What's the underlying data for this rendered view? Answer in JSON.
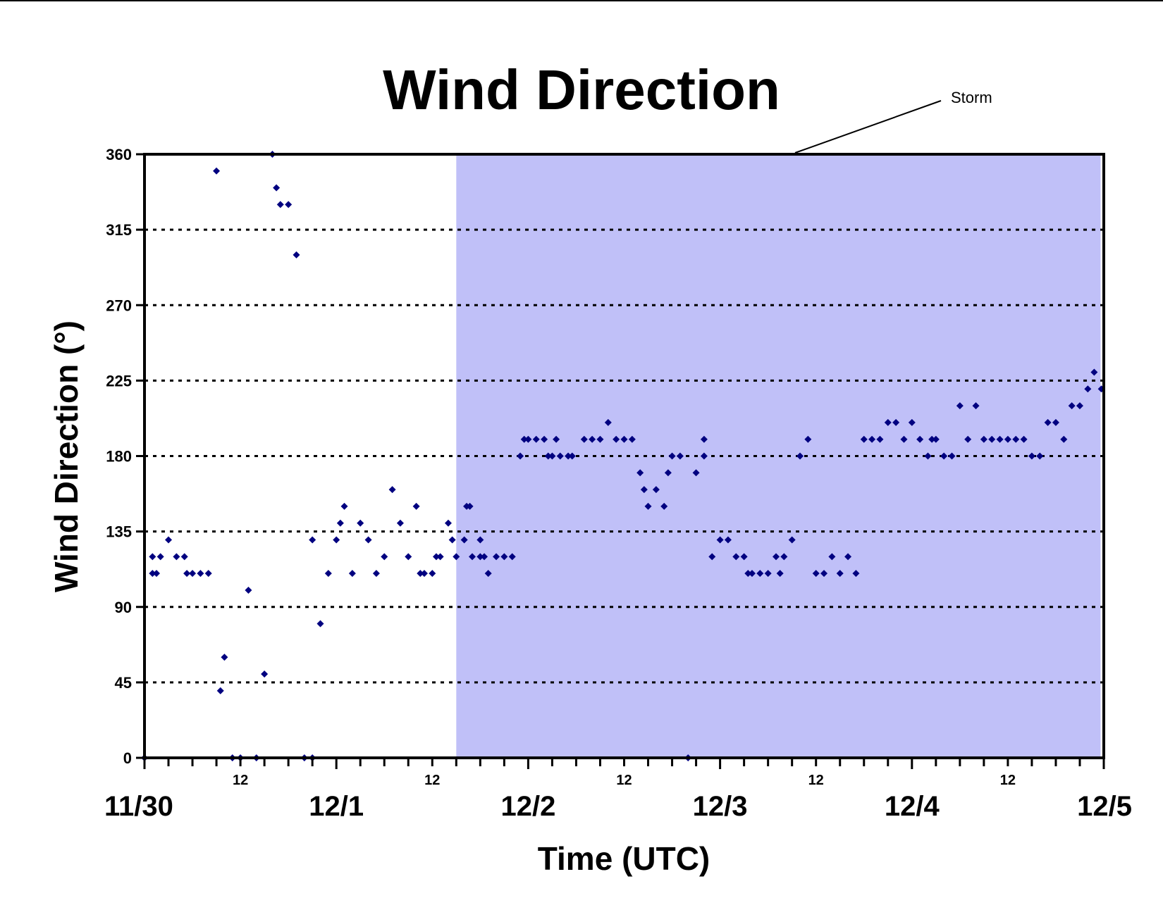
{
  "chart_data": {
    "type": "scatter",
    "title": "Wind Direction",
    "xlabel": "Time (UTC)",
    "ylabel": "Wind Direction (°)",
    "x_unit": "hours since 11/30 00 UTC",
    "xlim": [
      0,
      120
    ],
    "ylim": [
      0,
      360
    ],
    "y_ticks": [
      "0",
      "45",
      "90",
      "135",
      "180",
      "225",
      "270",
      "315",
      "360"
    ],
    "y_tick_values": [
      0,
      45,
      90,
      135,
      180,
      225,
      270,
      315,
      360
    ],
    "grid": "horizontal dotted",
    "day_labels": [
      {
        "x": 0,
        "label": "11/30"
      },
      {
        "x": 24,
        "label": "12/1"
      },
      {
        "x": 48,
        "label": "12/2"
      },
      {
        "x": 72,
        "label": "12/3"
      },
      {
        "x": 96,
        "label": "12/4"
      },
      {
        "x": 120,
        "label": "12/5"
      }
    ],
    "hour_labels": [
      {
        "x": 12,
        "label": "12"
      },
      {
        "x": 36,
        "label": "12"
      },
      {
        "x": 60,
        "label": "12"
      },
      {
        "x": 84,
        "label": "12"
      },
      {
        "x": 108,
        "label": "12"
      }
    ],
    "shaded_region": {
      "x_start": 39,
      "x_end": 119.6,
      "label": "Storm",
      "color": "#c0c0f8"
    },
    "marker_color": "#000080",
    "points": [
      [
        0,
        0
      ],
      [
        1,
        120
      ],
      [
        1,
        110
      ],
      [
        1.5,
        110
      ],
      [
        2,
        120
      ],
      [
        3,
        130
      ],
      [
        4,
        120
      ],
      [
        5,
        120
      ],
      [
        5.3,
        110
      ],
      [
        6,
        110
      ],
      [
        7,
        110
      ],
      [
        8,
        110
      ],
      [
        9,
        350
      ],
      [
        9.5,
        40
      ],
      [
        10,
        60
      ],
      [
        11,
        0
      ],
      [
        12,
        0
      ],
      [
        13,
        100
      ],
      [
        14,
        0
      ],
      [
        15,
        50
      ],
      [
        16,
        360
      ],
      [
        16.5,
        340
      ],
      [
        17,
        330
      ],
      [
        18,
        330
      ],
      [
        19,
        300
      ],
      [
        20,
        0
      ],
      [
        21,
        0
      ],
      [
        21,
        130
      ],
      [
        22,
        80
      ],
      [
        23,
        110
      ],
      [
        24,
        130
      ],
      [
        24.5,
        140
      ],
      [
        25,
        150
      ],
      [
        26,
        110
      ],
      [
        27,
        140
      ],
      [
        28,
        130
      ],
      [
        29,
        110
      ],
      [
        30,
        120
      ],
      [
        31,
        160
      ],
      [
        32,
        140
      ],
      [
        33,
        120
      ],
      [
        34,
        150
      ],
      [
        34.5,
        110
      ],
      [
        35,
        110
      ],
      [
        36,
        110
      ],
      [
        36.5,
        120
      ],
      [
        37,
        120
      ],
      [
        38,
        140
      ],
      [
        38.5,
        130
      ],
      [
        39,
        120
      ],
      [
        40,
        130
      ],
      [
        40.3,
        150
      ],
      [
        40.7,
        150
      ],
      [
        41,
        120
      ],
      [
        42,
        120
      ],
      [
        42,
        130
      ],
      [
        42.5,
        120
      ],
      [
        43,
        110
      ],
      [
        44,
        120
      ],
      [
        45,
        120
      ],
      [
        46,
        120
      ],
      [
        47,
        180
      ],
      [
        47.5,
        190
      ],
      [
        48,
        190
      ],
      [
        49,
        190
      ],
      [
        50,
        190
      ],
      [
        50.5,
        180
      ],
      [
        51,
        180
      ],
      [
        51.5,
        190
      ],
      [
        52,
        180
      ],
      [
        53,
        180
      ],
      [
        53.5,
        180
      ],
      [
        55,
        190
      ],
      [
        56,
        190
      ],
      [
        57,
        190
      ],
      [
        58,
        200
      ],
      [
        59,
        190
      ],
      [
        60,
        190
      ],
      [
        61,
        190
      ],
      [
        62,
        170
      ],
      [
        62.5,
        160
      ],
      [
        63,
        150
      ],
      [
        64,
        160
      ],
      [
        65,
        150
      ],
      [
        65.5,
        170
      ],
      [
        66,
        180
      ],
      [
        67,
        180
      ],
      [
        68,
        0
      ],
      [
        69,
        170
      ],
      [
        70,
        190
      ],
      [
        70,
        180
      ],
      [
        71,
        120
      ],
      [
        72,
        130
      ],
      [
        73,
        130
      ],
      [
        74,
        120
      ],
      [
        75,
        120
      ],
      [
        75.5,
        110
      ],
      [
        76,
        110
      ],
      [
        77,
        110
      ],
      [
        78,
        110
      ],
      [
        79,
        120
      ],
      [
        79.5,
        110
      ],
      [
        80,
        120
      ],
      [
        81,
        130
      ],
      [
        82,
        180
      ],
      [
        83,
        190
      ],
      [
        84,
        110
      ],
      [
        85,
        110
      ],
      [
        86,
        120
      ],
      [
        87,
        110
      ],
      [
        88,
        120
      ],
      [
        89,
        110
      ],
      [
        90,
        190
      ],
      [
        91,
        190
      ],
      [
        92,
        190
      ],
      [
        93,
        200
      ],
      [
        94,
        200
      ],
      [
        95,
        190
      ],
      [
        96,
        200
      ],
      [
        97,
        190
      ],
      [
        98,
        180
      ],
      [
        98.5,
        190
      ],
      [
        99,
        190
      ],
      [
        100,
        180
      ],
      [
        101,
        180
      ],
      [
        102,
        210
      ],
      [
        103,
        190
      ],
      [
        104,
        210
      ],
      [
        105,
        190
      ],
      [
        106,
        190
      ],
      [
        107,
        190
      ],
      [
        108,
        190
      ],
      [
        109,
        190
      ],
      [
        110,
        190
      ],
      [
        111,
        180
      ],
      [
        112,
        180
      ],
      [
        113,
        200
      ],
      [
        114,
        200
      ],
      [
        115,
        190
      ],
      [
        116,
        210
      ],
      [
        117,
        210
      ],
      [
        118,
        220
      ],
      [
        118.8,
        230
      ],
      [
        119.7,
        220
      ]
    ]
  }
}
